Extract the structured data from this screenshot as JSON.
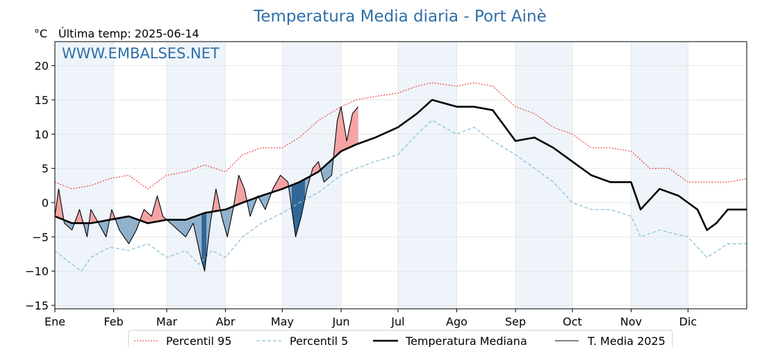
{
  "header": {
    "title": "Temperatura Media diaria - Port Ainè",
    "unit": "°C",
    "last_temp": "Última temp: 2025-06-14",
    "watermark": "WWW.EMBALSES.NET"
  },
  "colors": {
    "title": "#2e6ea8",
    "p95": "#e8231b",
    "p5": "#8cc3d8",
    "median": "#000000",
    "current": "#000000",
    "above_fill": "#f4a3a3",
    "above_fill_strong": "#e0565a",
    "below_fill": "#8fb0cc",
    "below_fill_strong": "#2f6596",
    "band": "#eef4fa"
  },
  "chart_data": {
    "type": "line",
    "title": "Temperatura Media diaria - Port Ainè",
    "ylabel": "°C",
    "xlim": [
      1,
      366
    ],
    "ylim": [
      -15.5,
      23.5
    ],
    "yticks": [
      -15,
      -10,
      -5,
      0,
      5,
      10,
      15,
      20
    ],
    "ytick_labels": [
      "−15",
      "−10",
      "−5",
      "0",
      "5",
      "10",
      "15",
      "20"
    ],
    "months": [
      "Ene",
      "Feb",
      "Mar",
      "Abr",
      "May",
      "Jun",
      "Jul",
      "Ago",
      "Sep",
      "Oct",
      "Nov",
      "Dic"
    ],
    "month_start_days": [
      1,
      32,
      60,
      91,
      121,
      152,
      182,
      213,
      244,
      274,
      305,
      335
    ],
    "grid": true,
    "legend_position": "bottom-center",
    "series": [
      {
        "name": "Percentil 95",
        "style": "dotted",
        "points": [
          [
            1,
            3
          ],
          [
            10,
            2
          ],
          [
            20,
            2.5
          ],
          [
            30,
            3.5
          ],
          [
            40,
            4
          ],
          [
            50,
            2
          ],
          [
            60,
            4
          ],
          [
            70,
            4.5
          ],
          [
            80,
            5.5
          ],
          [
            91,
            4.5
          ],
          [
            100,
            7
          ],
          [
            110,
            8
          ],
          [
            121,
            8
          ],
          [
            130,
            9.5
          ],
          [
            140,
            12
          ],
          [
            152,
            14
          ],
          [
            160,
            15
          ],
          [
            170,
            15.5
          ],
          [
            182,
            16
          ],
          [
            192,
            17
          ],
          [
            200,
            17.5
          ],
          [
            213,
            17
          ],
          [
            222,
            17.5
          ],
          [
            232,
            17
          ],
          [
            244,
            14
          ],
          [
            254,
            13
          ],
          [
            264,
            11
          ],
          [
            274,
            10
          ],
          [
            284,
            8
          ],
          [
            294,
            8
          ],
          [
            305,
            7.5
          ],
          [
            315,
            5
          ],
          [
            325,
            5
          ],
          [
            335,
            3
          ],
          [
            345,
            3
          ],
          [
            356,
            3
          ],
          [
            366,
            3.5
          ]
        ]
      },
      {
        "name": "Percentil 5",
        "style": "dashed",
        "points": [
          [
            1,
            -7
          ],
          [
            10,
            -9
          ],
          [
            15,
            -10
          ],
          [
            20,
            -8
          ],
          [
            30,
            -6.5
          ],
          [
            40,
            -7
          ],
          [
            50,
            -6
          ],
          [
            60,
            -8
          ],
          [
            70,
            -7
          ],
          [
            77,
            -9
          ],
          [
            84,
            -7
          ],
          [
            91,
            -8
          ],
          [
            100,
            -5
          ],
          [
            110,
            -3
          ],
          [
            121,
            -1.5
          ],
          [
            130,
            0
          ],
          [
            140,
            1.5
          ],
          [
            152,
            4
          ],
          [
            160,
            5
          ],
          [
            170,
            6
          ],
          [
            182,
            7
          ],
          [
            192,
            10
          ],
          [
            200,
            12
          ],
          [
            213,
            10
          ],
          [
            222,
            11
          ],
          [
            232,
            9
          ],
          [
            244,
            7
          ],
          [
            254,
            5
          ],
          [
            264,
            3
          ],
          [
            274,
            0
          ],
          [
            284,
            -1
          ],
          [
            294,
            -1
          ],
          [
            305,
            -2
          ],
          [
            310,
            -5
          ],
          [
            320,
            -4
          ],
          [
            335,
            -5
          ],
          [
            345,
            -8
          ],
          [
            356,
            -6
          ],
          [
            366,
            -6
          ]
        ]
      },
      {
        "name": "Temperatura Mediana",
        "style": "solid-thick",
        "points": [
          [
            1,
            -2
          ],
          [
            10,
            -3
          ],
          [
            20,
            -3
          ],
          [
            30,
            -2.5
          ],
          [
            40,
            -2
          ],
          [
            50,
            -3
          ],
          [
            60,
            -2.5
          ],
          [
            70,
            -2.5
          ],
          [
            80,
            -1.5
          ],
          [
            91,
            -1
          ],
          [
            100,
            0
          ],
          [
            110,
            1
          ],
          [
            121,
            2
          ],
          [
            130,
            3
          ],
          [
            140,
            4.5
          ],
          [
            152,
            7.5
          ],
          [
            160,
            8.5
          ],
          [
            170,
            9.5
          ],
          [
            182,
            11
          ],
          [
            192,
            13
          ],
          [
            200,
            15
          ],
          [
            213,
            14
          ],
          [
            222,
            14
          ],
          [
            232,
            13.5
          ],
          [
            244,
            9
          ],
          [
            254,
            9.5
          ],
          [
            264,
            8
          ],
          [
            274,
            6
          ],
          [
            284,
            4
          ],
          [
            294,
            3
          ],
          [
            305,
            3
          ],
          [
            310,
            -1
          ],
          [
            320,
            2
          ],
          [
            330,
            1
          ],
          [
            335,
            0
          ],
          [
            340,
            -1
          ],
          [
            345,
            -4
          ],
          [
            350,
            -3
          ],
          [
            356,
            -1
          ],
          [
            366,
            -1
          ]
        ]
      },
      {
        "name": "T. Media 2025",
        "style": "solid-thin",
        "points": [
          [
            1,
            -2
          ],
          [
            3,
            2
          ],
          [
            6,
            -3
          ],
          [
            10,
            -4
          ],
          [
            14,
            -1
          ],
          [
            18,
            -5
          ],
          [
            20,
            -1
          ],
          [
            24,
            -3
          ],
          [
            28,
            -5
          ],
          [
            31,
            -1
          ],
          [
            35,
            -4
          ],
          [
            40,
            -6
          ],
          [
            44,
            -4
          ],
          [
            48,
            -1
          ],
          [
            52,
            -2
          ],
          [
            55,
            1
          ],
          [
            58,
            -2
          ],
          [
            62,
            -3
          ],
          [
            66,
            -4
          ],
          [
            70,
            -5
          ],
          [
            74,
            -3
          ],
          [
            78,
            -8
          ],
          [
            80,
            -10
          ],
          [
            83,
            -3
          ],
          [
            86,
            2
          ],
          [
            89,
            -2
          ],
          [
            92,
            -5
          ],
          [
            95,
            -1
          ],
          [
            98,
            4
          ],
          [
            101,
            2
          ],
          [
            104,
            -2
          ],
          [
            108,
            1
          ],
          [
            112,
            -1
          ],
          [
            116,
            2
          ],
          [
            120,
            4
          ],
          [
            124,
            3
          ],
          [
            128,
            -5
          ],
          [
            131,
            -2
          ],
          [
            134,
            2
          ],
          [
            137,
            5
          ],
          [
            140,
            6
          ],
          [
            143,
            3
          ],
          [
            147,
            4
          ],
          [
            150,
            12
          ],
          [
            152,
            14
          ],
          [
            155,
            9
          ],
          [
            158,
            13
          ],
          [
            161,
            14
          ]
        ]
      }
    ]
  },
  "legend": {
    "p95_label": "Percentil 95",
    "p5_label": "Percentil 5",
    "median_label": "Temperatura Mediana",
    "current_label": "T. Media 2025"
  }
}
